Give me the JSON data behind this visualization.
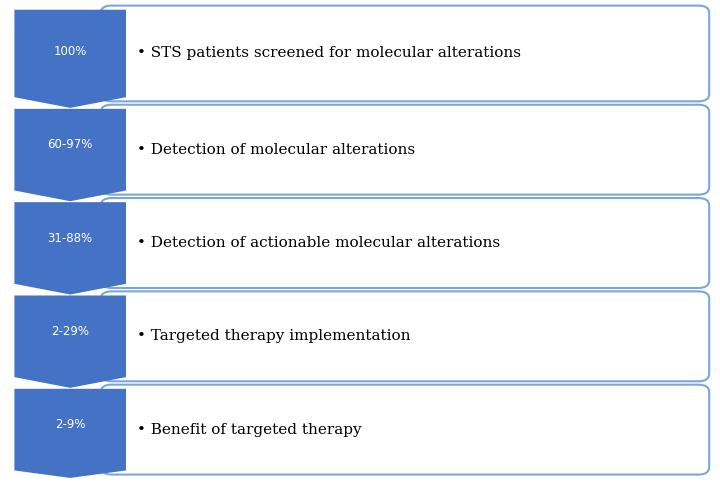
{
  "rows": [
    {
      "label": "100%",
      "text": "• STS patients screened for molecular alterations"
    },
    {
      "label": "60-97%",
      "text": "• Detection of molecular alterations"
    },
    {
      "label": "31-88%",
      "text": "• Detection of actionable molecular alterations"
    },
    {
      "label": "2-29%",
      "text": "• Targeted therapy implementation"
    },
    {
      "label": "2-9%",
      "text": "• Benefit of targeted therapy"
    }
  ],
  "arrow_color": "#4472C4",
  "box_fill": "#FFFFFF",
  "box_edge": "#7BA7D8",
  "label_color": "#FFFFFF",
  "text_color": "#000000",
  "background_color": "#FFFFFF",
  "fig_width": 7.2,
  "fig_height": 4.86,
  "dpi": 100
}
